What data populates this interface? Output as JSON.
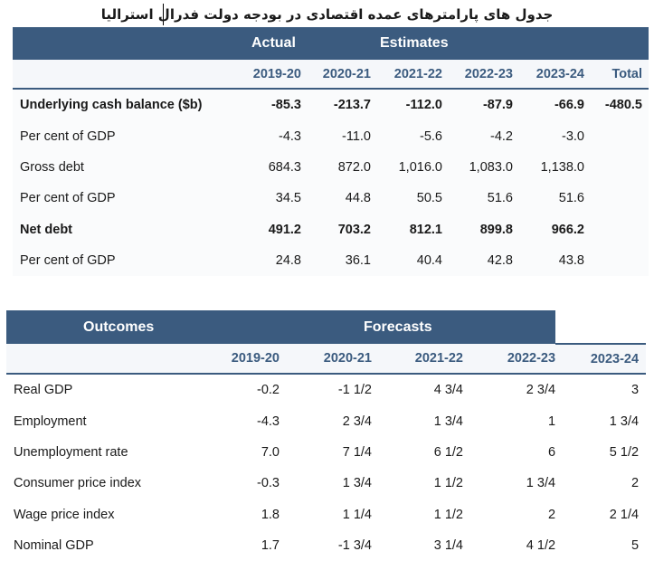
{
  "title": "جدول های پارامترهای عمده اقتصادی در بودجه دولت فدرال استرالیا",
  "table1": {
    "group_actual": "Actual",
    "group_estimates": "Estimates",
    "years": [
      "2019-20",
      "2020-21",
      "2021-22",
      "2022-23",
      "2023-24",
      "Total"
    ],
    "rows": [
      {
        "label": "Underlying cash balance ($b)",
        "bold": true,
        "values": [
          "-85.3",
          "-213.7",
          "-112.0",
          "-87.9",
          "-66.9",
          "-480.5"
        ]
      },
      {
        "label": "Per cent of GDP",
        "values": [
          "-4.3",
          "-11.0",
          "-5.6",
          "-4.2",
          "-3.0",
          ""
        ]
      },
      {
        "label": "Gross debt",
        "values": [
          "684.3",
          "872.0",
          "1,016.0",
          "1,083.0",
          "1,138.0",
          ""
        ]
      },
      {
        "label": "Per cent of GDP",
        "values": [
          "34.5",
          "44.8",
          "50.5",
          "51.6",
          "51.6",
          ""
        ]
      },
      {
        "label": "Net debt",
        "bold": true,
        "values": [
          "491.2",
          "703.2",
          "812.1",
          "899.8",
          "966.2",
          ""
        ]
      },
      {
        "label": "Per cent of GDP",
        "values": [
          "24.8",
          "36.1",
          "40.4",
          "42.8",
          "43.8",
          ""
        ]
      }
    ]
  },
  "table2": {
    "group_outcomes": "Outcomes",
    "group_forecasts": "Forecasts",
    "years": [
      "2019-20",
      "2020-21",
      "2021-22",
      "2022-23",
      "2023-24"
    ],
    "rows": [
      {
        "label": "Real GDP",
        "values": [
          "-0.2",
          "-1 1/2",
          "4 3/4",
          "2 3/4",
          "3"
        ]
      },
      {
        "label": "Employment",
        "values": [
          "-4.3",
          "2 3/4",
          "1 3/4",
          "1",
          "1 3/4"
        ]
      },
      {
        "label": "Unemployment rate",
        "values": [
          "7.0",
          "7 1/4",
          "6 1/2",
          "6",
          "5 1/2"
        ]
      },
      {
        "label": "Consumer price index",
        "values": [
          "-0.3",
          "1 3/4",
          "1 1/2",
          "1 3/4",
          "2"
        ]
      },
      {
        "label": "Wage price index",
        "values": [
          "1.8",
          "1 1/4",
          "1 1/2",
          "2",
          "2 1/4"
        ]
      },
      {
        "label": "Nominal GDP",
        "values": [
          "1.7",
          "-1 3/4",
          "3 1/4",
          "4 1/2",
          "5"
        ]
      }
    ]
  }
}
